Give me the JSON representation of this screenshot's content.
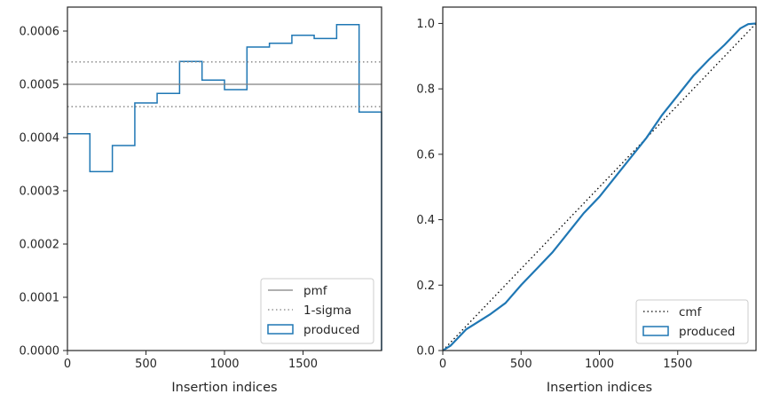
{
  "chart_data": [
    {
      "type": "step-histogram",
      "xlabel": "Insertion indices",
      "ylabel": "",
      "xlim": [
        0,
        2000
      ],
      "ylim": [
        0,
        0.000645
      ],
      "xticks": [
        0,
        500,
        1000,
        1500
      ],
      "xtick_labels": [
        "0",
        "500",
        "1000",
        "1500"
      ],
      "yticks": [
        0,
        0.0001,
        0.0002,
        0.0003,
        0.0004,
        0.0005,
        0.0006
      ],
      "ytick_labels": [
        "0.0000",
        "0.0001",
        "0.0002",
        "0.0003",
        "0.0004",
        "0.0005",
        "0.0006"
      ],
      "grid": false,
      "legend_position": "lower-right",
      "pmf": 0.0005,
      "sigma_lines": [
        0.000458,
        0.000542
      ],
      "bin_edges": [
        0,
        143,
        286,
        429,
        571,
        714,
        857,
        1000,
        1143,
        1286,
        1429,
        1571,
        1714,
        1857,
        2000
      ],
      "series": [
        {
          "name": "produced",
          "values": [
            0.000407,
            0.000336,
            0.000385,
            0.000465,
            0.000483,
            0.000543,
            0.000508,
            0.00049,
            0.00057,
            0.000577,
            0.000592,
            0.000586,
            0.000612,
            0.000448
          ]
        }
      ],
      "legend": [
        {
          "label": "pmf",
          "style": "solid",
          "color": "#808080"
        },
        {
          "label": "1-sigma",
          "style": "dotted",
          "color": "#808080"
        },
        {
          "label": "produced",
          "style": "patch",
          "color": "#1f77b4"
        }
      ]
    },
    {
      "type": "line",
      "xlabel": "Insertion indices",
      "ylabel": "",
      "xlim": [
        0,
        2000
      ],
      "ylim": [
        0,
        1.05
      ],
      "xticks": [
        0,
        500,
        1000,
        1500
      ],
      "xtick_labels": [
        "0",
        "500",
        "1000",
        "1500"
      ],
      "yticks": [
        0,
        0.2,
        0.4,
        0.6,
        0.8,
        1.0
      ],
      "ytick_labels": [
        "0.0",
        "0.2",
        "0.4",
        "0.6",
        "0.8",
        "1.0"
      ],
      "grid": false,
      "legend_position": "lower-right",
      "series": [
        {
          "name": "cmf",
          "style": "dotted",
          "color": "#000000",
          "x": [
            0,
            2000
          ],
          "y": [
            0,
            1.0
          ]
        },
        {
          "name": "produced",
          "style": "solid",
          "color": "#1f77b4",
          "x": [
            0,
            50,
            100,
            150,
            200,
            300,
            400,
            500,
            600,
            700,
            800,
            900,
            1000,
            1100,
            1200,
            1300,
            1400,
            1500,
            1600,
            1700,
            1800,
            1900,
            1950,
            2000
          ],
          "y": [
            0,
            0.015,
            0.04,
            0.065,
            0.08,
            0.11,
            0.145,
            0.2,
            0.25,
            0.3,
            0.36,
            0.42,
            0.47,
            0.53,
            0.59,
            0.65,
            0.72,
            0.78,
            0.84,
            0.89,
            0.935,
            0.985,
            0.998,
            1.0
          ]
        }
      ],
      "legend": [
        {
          "label": "cmf",
          "style": "dotted",
          "color": "#000000"
        },
        {
          "label": "produced",
          "style": "patch",
          "color": "#1f77b4"
        }
      ]
    }
  ]
}
